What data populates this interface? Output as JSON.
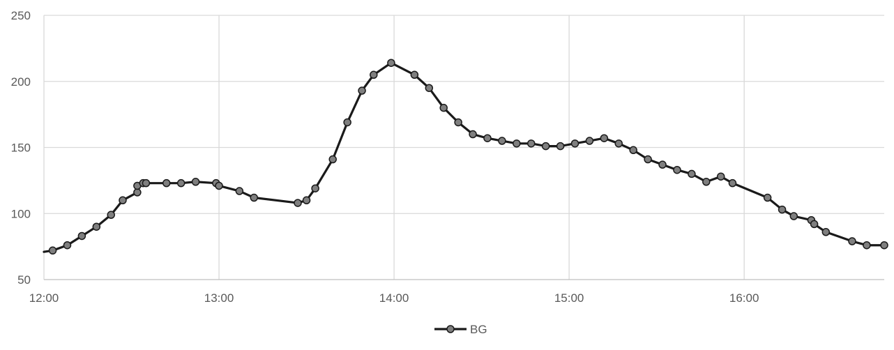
{
  "chart_data": {
    "type": "line",
    "title": "",
    "xlabel": "",
    "ylabel": "",
    "xlim": [
      "12:00",
      "16:48"
    ],
    "ylim": [
      50,
      250
    ],
    "yticks": [
      50,
      100,
      150,
      200,
      250
    ],
    "xticks": [
      "12:00",
      "13:00",
      "14:00",
      "15:00",
      "16:00"
    ],
    "grid": true,
    "legend_position": "bottom",
    "series": [
      {
        "name": "BG",
        "line_color": "#1a1a1a",
        "marker_color": "#7f7f7f",
        "x": [
          "12:00",
          "12:03",
          "12:08",
          "12:13",
          "12:18",
          "12:23",
          "12:27",
          "12:32",
          "12:32",
          "12:34",
          "12:35",
          "12:42",
          "12:47",
          "12:52",
          "12:59",
          "13:00",
          "13:07",
          "13:12",
          "13:27",
          "13:30",
          "13:33",
          "13:39",
          "13:44",
          "13:49",
          "13:53",
          "13:59",
          "14:07",
          "14:12",
          "14:17",
          "14:22",
          "14:27",
          "14:32",
          "14:37",
          "14:42",
          "14:47",
          "14:52",
          "14:57",
          "15:02",
          "15:07",
          "15:12",
          "15:17",
          "15:22",
          "15:27",
          "15:32",
          "15:37",
          "15:42",
          "15:47",
          "15:52",
          "15:56",
          "16:08",
          "16:13",
          "16:17",
          "16:23",
          "16:24",
          "16:28",
          "16:37",
          "16:42",
          "16:48"
        ],
        "y": [
          71,
          72,
          76,
          83,
          90,
          99,
          110,
          116,
          121,
          123,
          123,
          123,
          123,
          124,
          123,
          121,
          117,
          112,
          108,
          110,
          119,
          141,
          169,
          193,
          205,
          214,
          205,
          195,
          180,
          169,
          160,
          157,
          155,
          153,
          153,
          151,
          151,
          153,
          155,
          157,
          153,
          148,
          141,
          137,
          133,
          130,
          124,
          128,
          123,
          112,
          103,
          98,
          95,
          92,
          86,
          79,
          76,
          76
        ]
      }
    ]
  }
}
